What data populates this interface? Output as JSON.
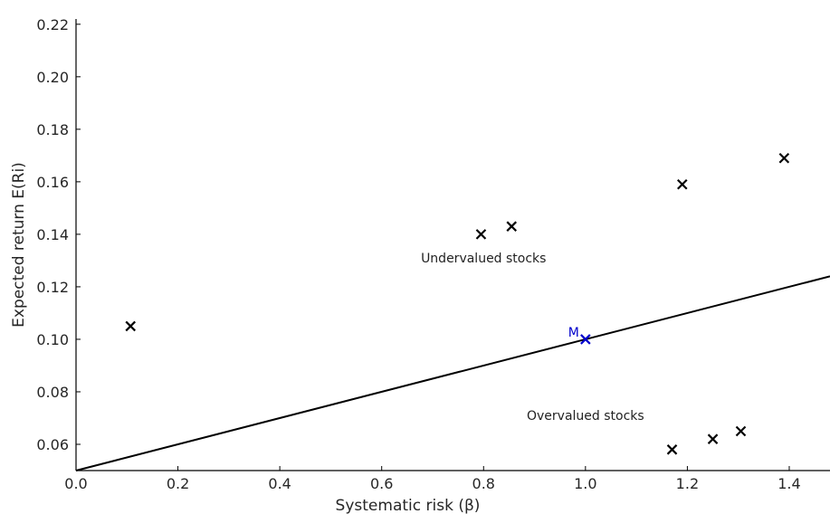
{
  "chart_data": {
    "type": "scatter",
    "xlabel": "Systematic risk (β)",
    "ylabel": "Expected return E(Ri)",
    "xlim": [
      0.0,
      1.48
    ],
    "ylim": [
      0.05,
      0.222
    ],
    "xticks": [
      "0.0",
      "0.2",
      "0.4",
      "0.6",
      "0.8",
      "1.0",
      "1.2",
      "1.4"
    ],
    "yticks": [
      "0.06",
      "0.08",
      "0.10",
      "0.12",
      "0.14",
      "0.16",
      "0.18",
      "0.20",
      "0.22"
    ],
    "sml": {
      "intercept": 0.05,
      "slope": 0.05
    },
    "points": [
      {
        "x": 0.107,
        "y": 0.105
      },
      {
        "x": 0.795,
        "y": 0.14
      },
      {
        "x": 0.855,
        "y": 0.143
      },
      {
        "x": 1.19,
        "y": 0.159
      },
      {
        "x": 1.39,
        "y": 0.169
      },
      {
        "x": 1.17,
        "y": 0.058
      },
      {
        "x": 1.25,
        "y": 0.062
      },
      {
        "x": 1.305,
        "y": 0.065
      }
    ],
    "market": {
      "x": 1.0,
      "y": 0.1,
      "label": "M",
      "color": "#0000cc"
    },
    "annotations": [
      {
        "text": "Undervalued stocks",
        "x": 0.8,
        "y": 0.131
      },
      {
        "text": "Overvalued stocks",
        "x": 1.0,
        "y": 0.071
      }
    ],
    "marker_color": "#000000",
    "grid": false
  }
}
